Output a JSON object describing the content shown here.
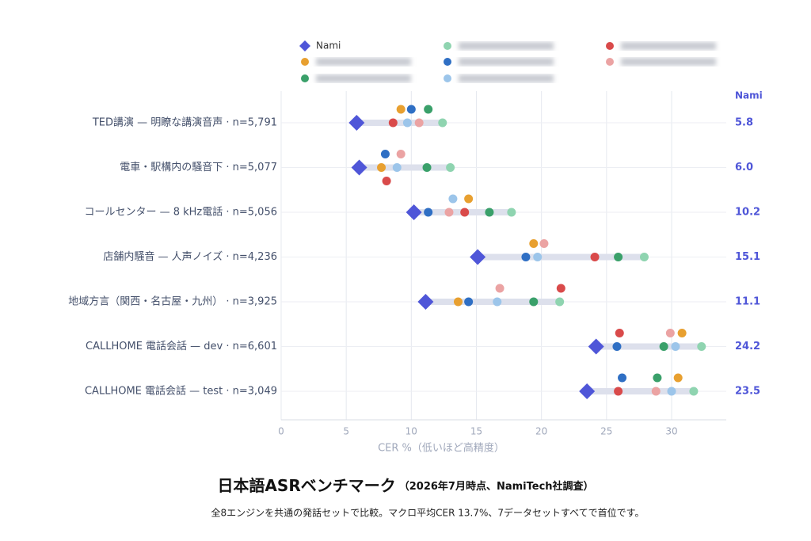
{
  "chart_data": {
    "type": "dot",
    "title": "日本語ASRベンチマーク",
    "subtitle": "（2026年7月時点、NamiTech社調査）",
    "note": "全8エンジンを共通の発話セットで比較。マクロ平均CER 13.7%、7データセットすべてで首位です。",
    "x_label": "CER %（低いほど高精度）",
    "xlim": [
      0,
      34.2
    ],
    "xticks": [
      0,
      5,
      10,
      15,
      20,
      25,
      30
    ],
    "grid": true,
    "categories": [
      "TED講演 — 明瞭な講演音声 · n=5,791",
      "電車・駅構内の騒音下 · n=5,077",
      "コールセンター — 8 kHz電話 · n=5,056",
      "店舗内騒音 — 人声ノイズ · n=4,236",
      "地域方言（関西・名古屋・九州） · n=3,925",
      "CALLHOME 電話会話 — dev · n=6,601",
      "CALLHOME 電話会話 — test · n=3,049"
    ],
    "series": [
      {
        "name": "Nami",
        "color": "#4f56d8",
        "marker": "diamond",
        "values": [
          5.8,
          6.0,
          10.2,
          15.1,
          11.1,
          24.2,
          23.5
        ],
        "value_labels": [
          "5.8",
          "6.0",
          "10.2",
          "15.1",
          "11.1",
          "24.2",
          "23.5"
        ]
      },
      {
        "color": "#e8a030",
        "values": [
          9.2,
          7.7,
          14.4,
          19.4,
          13.6,
          30.8,
          30.5
        ]
      },
      {
        "color": "#3aa06a",
        "values": [
          11.3,
          11.2,
          16.0,
          25.9,
          19.4,
          29.4,
          28.9
        ]
      },
      {
        "color": "#8fd4b0",
        "values": [
          12.4,
          13.0,
          17.7,
          27.9,
          21.4,
          32.3,
          31.7
        ]
      },
      {
        "color": "#2f6fc4",
        "values": [
          10.0,
          8.0,
          11.3,
          18.8,
          14.4,
          25.8,
          26.2
        ]
      },
      {
        "color": "#9cc5ea",
        "values": [
          9.7,
          8.9,
          13.2,
          19.7,
          16.6,
          30.3,
          30.0
        ]
      },
      {
        "color": "#d94a4a",
        "values": [
          8.6,
          8.1,
          14.1,
          24.1,
          21.5,
          26.0,
          25.9
        ]
      },
      {
        "color": "#eba3a3",
        "values": [
          10.6,
          9.2,
          12.9,
          20.2,
          16.8,
          29.9,
          28.8
        ]
      }
    ]
  }
}
